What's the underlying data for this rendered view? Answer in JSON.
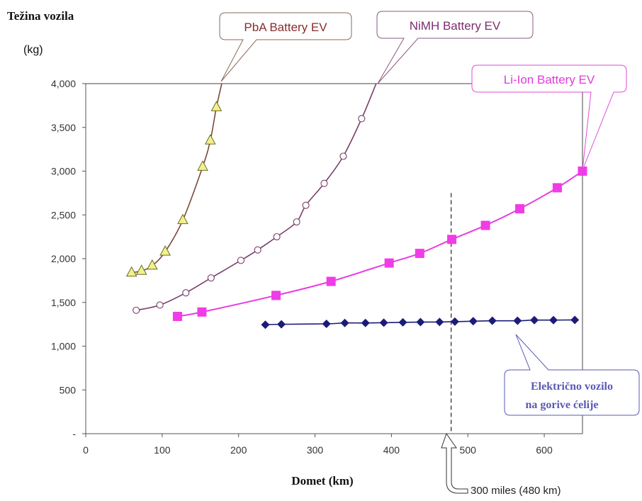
{
  "chart_data": {
    "type": "line",
    "ylabel": "Težina vozila",
    "yunit": "(kg)",
    "xlabel": "Domet (km)",
    "xlim": [
      0,
      650
    ],
    "ylim": [
      0,
      4000
    ],
    "xticks": [
      0,
      100,
      200,
      300,
      400,
      500,
      600
    ],
    "xtick_labels": [
      "0",
      "100",
      "200",
      "300",
      "400",
      "500",
      "600"
    ],
    "yticks": [
      0,
      500,
      1000,
      1500,
      2000,
      2500,
      3000,
      3500,
      4000
    ],
    "ytick_labels": [
      "-",
      "500",
      "1,000",
      "1,500",
      "2,000",
      "2,500",
      "3,000",
      "3,500",
      "4,000"
    ],
    "grid": false,
    "series": [
      {
        "name": "PbA Battery EV",
        "color": "#7a4a3a",
        "marker": "triangle",
        "marker_fill": "#f2f08a",
        "points": [
          [
            60,
            1840
          ],
          [
            73,
            1860
          ],
          [
            87,
            1920
          ],
          [
            104,
            2080
          ],
          [
            127,
            2440
          ],
          [
            153,
            3050
          ],
          [
            163,
            3350
          ],
          [
            171,
            3730
          ]
        ],
        "curve_end": [
          178,
          4000
        ]
      },
      {
        "name": "NiMH Battery EV",
        "color": "#7a3e6a",
        "marker": "circle-open",
        "marker_fill": "#ffffff",
        "points": [
          [
            66,
            1410
          ],
          [
            97,
            1470
          ],
          [
            131,
            1610
          ],
          [
            164,
            1780
          ],
          [
            203,
            1980
          ],
          [
            225,
            2100
          ],
          [
            250,
            2250
          ],
          [
            276,
            2420
          ],
          [
            288,
            2610
          ],
          [
            312,
            2860
          ],
          [
            337,
            3170
          ],
          [
            361,
            3600
          ]
        ],
        "curve_end": [
          380,
          4000
        ]
      },
      {
        "name": "Li-Ion Battery EV",
        "color": "#e93ce0",
        "marker": "square",
        "marker_fill": "#f03ce6",
        "points": [
          [
            120,
            1340
          ],
          [
            152,
            1390
          ],
          [
            249,
            1580
          ],
          [
            321,
            1740
          ],
          [
            397,
            1950
          ],
          [
            437,
            2060
          ],
          [
            479,
            2220
          ],
          [
            523,
            2380
          ],
          [
            568,
            2570
          ],
          [
            617,
            2810
          ],
          [
            650,
            3000
          ]
        ]
      },
      {
        "name": "Električno vozilo na gorive ćelije",
        "color": "#1b1b78",
        "marker": "diamond",
        "marker_fill": "#1b1b78",
        "points": [
          [
            235,
            1245
          ],
          [
            256,
            1250
          ],
          [
            315,
            1255
          ],
          [
            339,
            1265
          ],
          [
            366,
            1265
          ],
          [
            390,
            1268
          ],
          [
            415,
            1272
          ],
          [
            438,
            1275
          ],
          [
            463,
            1276
          ],
          [
            483,
            1280
          ],
          [
            507,
            1285
          ],
          [
            532,
            1290
          ],
          [
            565,
            1290
          ],
          [
            587,
            1298
          ],
          [
            612,
            1298
          ],
          [
            640,
            1300
          ]
        ]
      }
    ],
    "vline": {
      "x": 480,
      "y_top": 2750
    },
    "annotations": {
      "pba": "PbA Battery EV",
      "nimh": "NiMH Battery EV",
      "liion": "Li-Ion Battery EV",
      "fc_line1": "Električno vozilo",
      "fc_line2": "na gorive ćelije",
      "miles": "300 miles (480 km)"
    }
  }
}
